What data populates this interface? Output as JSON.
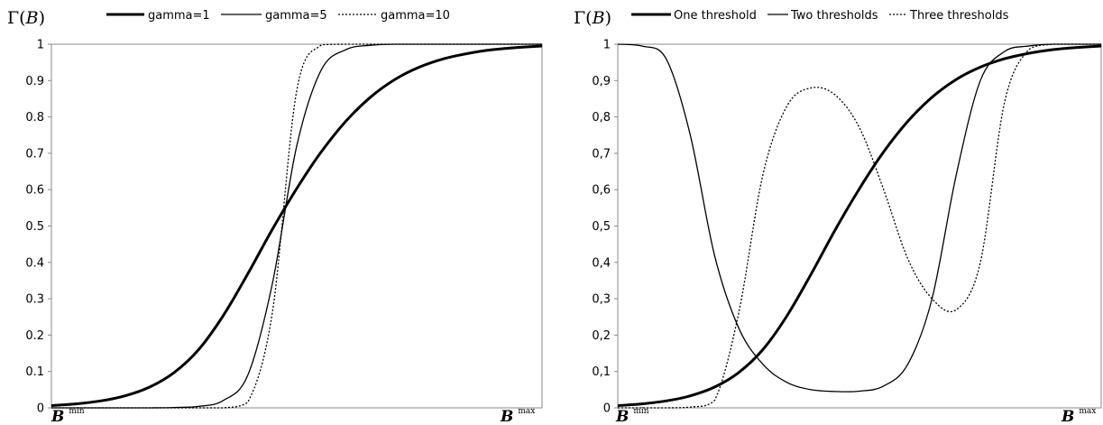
{
  "chart_data": [
    {
      "type": "line",
      "ylabel": "Γ(B)",
      "ylabel_prefix": "Γ(",
      "ylabel_symbol": "B",
      "ylabel_suffix": ")",
      "ylim": [
        0,
        1
      ],
      "yticks": [
        "0",
        "0.1",
        "0.2",
        "0.3",
        "0.4",
        "0.5",
        "0.6",
        "0.7",
        "0.8",
        "0.9",
        "1"
      ],
      "x_start_label": "B",
      "x_start_sup": "min",
      "x_end_label": "B",
      "x_end_sup": "max",
      "x": [
        0,
        0.05,
        0.1,
        0.15,
        0.2,
        0.25,
        0.3,
        0.35,
        0.4,
        0.45,
        0.5,
        0.55,
        0.6,
        0.65,
        0.7,
        0.75,
        0.8,
        0.85,
        0.9,
        0.95,
        1
      ],
      "series": [
        {
          "name": "gamma=1",
          "style": "thick",
          "values": [
            0.006,
            0.011,
            0.019,
            0.033,
            0.057,
            0.097,
            0.16,
            0.253,
            0.368,
            0.49,
            0.603,
            0.704,
            0.788,
            0.854,
            0.903,
            0.937,
            0.96,
            0.975,
            0.985,
            0.991,
            0.995
          ]
        },
        {
          "name": "gamma=5",
          "style": "thin",
          "values": [
            0,
            0,
            0,
            0,
            0,
            0.001,
            0.004,
            0.02,
            0.089,
            0.339,
            0.72,
            0.929,
            0.985,
            0.997,
            1,
            1,
            1,
            1,
            1,
            1,
            1
          ]
        },
        {
          "name": "gamma=10",
          "style": "dotted",
          "values": [
            0,
            0,
            0,
            0,
            0,
            0,
            0,
            0,
            0.015,
            0.259,
            0.872,
            0.998,
            1,
            1,
            1,
            1,
            1,
            1,
            1,
            1,
            1
          ]
        }
      ]
    },
    {
      "type": "line",
      "ylabel": "Γ(B)",
      "ylabel_prefix": "Γ(",
      "ylabel_symbol": "B",
      "ylabel_suffix": ")",
      "ylim": [
        0,
        1
      ],
      "yticks": [
        "0",
        "0,1",
        "0,2",
        "0,3",
        "0,4",
        "0,5",
        "0,6",
        "0,7",
        "0,8",
        "0,9",
        "1"
      ],
      "x_start_label": "B",
      "x_start_sup": "min",
      "x_end_label": "B",
      "x_end_sup": "max",
      "x": [
        0,
        0.05,
        0.1,
        0.15,
        0.2,
        0.25,
        0.3,
        0.35,
        0.4,
        0.45,
        0.5,
        0.55,
        0.6,
        0.65,
        0.7,
        0.75,
        0.8,
        0.85,
        0.9,
        0.95,
        1
      ],
      "series": [
        {
          "name": "One threshold",
          "style": "thick",
          "values": [
            0.006,
            0.011,
            0.019,
            0.033,
            0.057,
            0.097,
            0.16,
            0.253,
            0.368,
            0.49,
            0.603,
            0.704,
            0.788,
            0.854,
            0.903,
            0.937,
            0.96,
            0.975,
            0.985,
            0.991,
            0.995
          ]
        },
        {
          "name": "Two thresholds",
          "style": "thin",
          "values": [
            1.0,
            0.995,
            0.96,
            0.75,
            0.42,
            0.22,
            0.12,
            0.07,
            0.05,
            0.045,
            0.046,
            0.06,
            0.12,
            0.3,
            0.64,
            0.9,
            0.98,
            0.995,
            1,
            1,
            1
          ]
        },
        {
          "name": "Three thresholds",
          "style": "dotted",
          "values": [
            0,
            0,
            0,
            0.002,
            0.02,
            0.26,
            0.64,
            0.83,
            0.88,
            0.86,
            0.77,
            0.6,
            0.41,
            0.3,
            0.27,
            0.4,
            0.84,
            0.985,
            1,
            1,
            1
          ]
        }
      ]
    }
  ]
}
